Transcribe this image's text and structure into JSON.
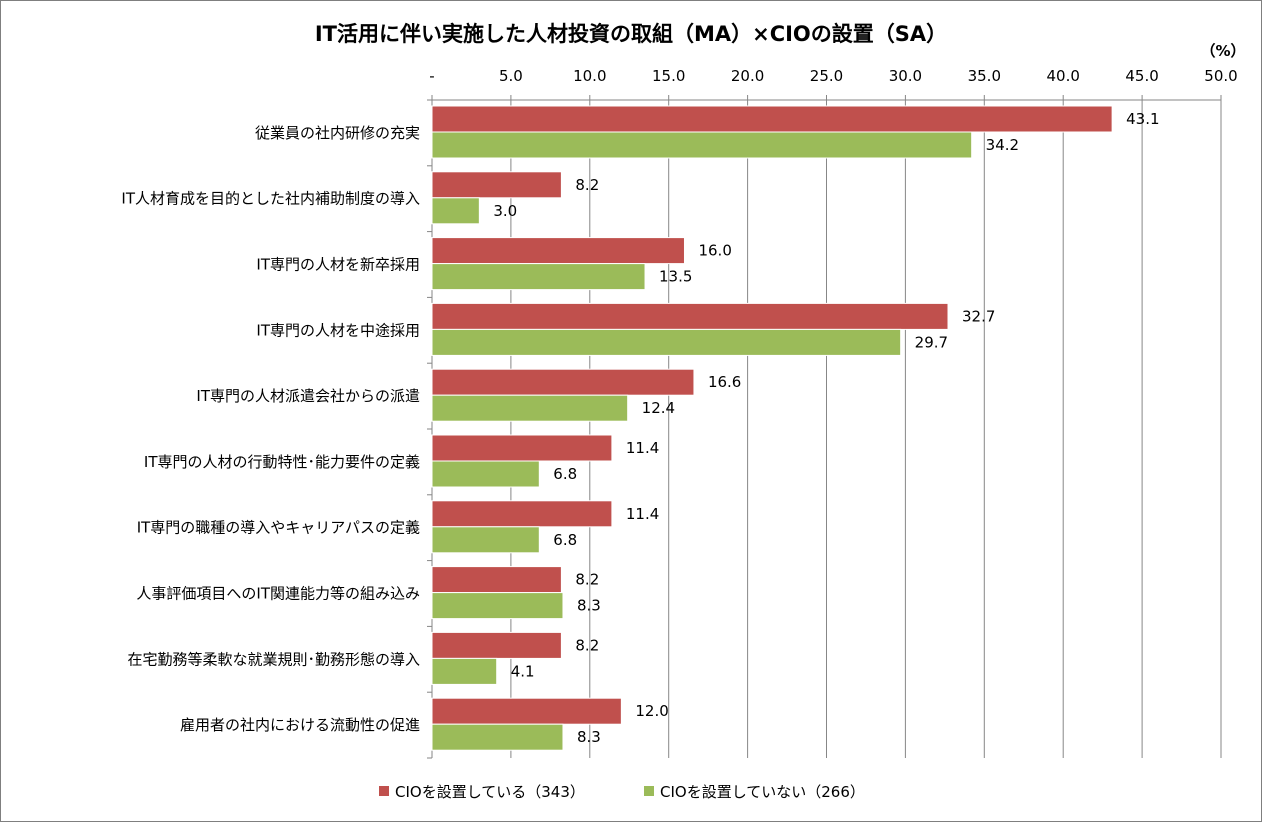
{
  "chart_data": {
    "type": "bar",
    "orientation": "horizontal",
    "title": "IT活用に伴い実施した人材投資の取組（MA）×CIOの設置（SA）",
    "unit_label": "（%）",
    "xlim": [
      0,
      50
    ],
    "x_tick_labels": [
      "-",
      "5.0",
      "10.0",
      "15.0",
      "20.0",
      "25.0",
      "30.0",
      "35.0",
      "40.0",
      "45.0",
      "50.0"
    ],
    "grid": true,
    "legend_position": "bottom",
    "categories": [
      "従業員の社内研修の充実",
      "IT人材育成を目的とした社内補助制度の導入",
      "IT専門の人材を新卒採用",
      "IT専門の人材を中途採用",
      "IT専門の人材派遣会社からの派遣",
      "IT専門の人材の行動特性･能力要件の定義",
      "IT専門の職種の導入やキャリアパスの定義",
      "人事評価項目へのIT関連能力等の組み込み",
      "在宅勤務等柔軟な就業規則･勤務形態の導入",
      "雇用者の社内における流動性の促進"
    ],
    "series": [
      {
        "name": "CIOを設置している（343）",
        "color": "#c0504d",
        "values": [
          43.1,
          8.2,
          16.0,
          32.7,
          16.6,
          11.4,
          11.4,
          8.2,
          8.2,
          12.0
        ],
        "labels": [
          "43.1",
          "8.2",
          "16.0",
          "32.7",
          "16.6",
          "11.4",
          "11.4",
          "8.2",
          "8.2",
          "12.0"
        ]
      },
      {
        "name": "CIOを設置していない（266）",
        "color": "#9bbb59",
        "values": [
          34.2,
          3.0,
          13.5,
          29.7,
          12.4,
          6.8,
          6.8,
          8.3,
          4.1,
          8.3
        ],
        "labels": [
          "34.2",
          "3.0",
          "13.5",
          "29.7",
          "12.4",
          "6.8",
          "6.8",
          "8.3",
          "4.1",
          "8.3"
        ]
      }
    ]
  }
}
